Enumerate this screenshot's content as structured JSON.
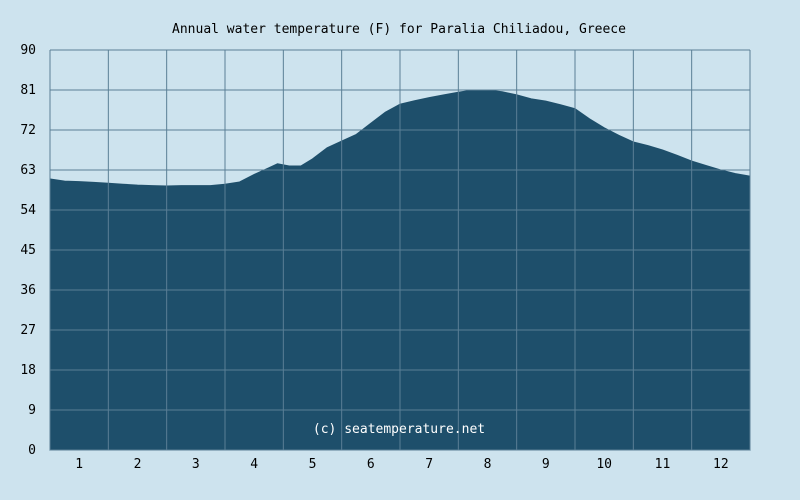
{
  "chart_data": {
    "type": "area",
    "title": "Annual water temperature (F) for Paralia Chiliadou, Greece",
    "xlabel": "",
    "ylabel": "",
    "x_ticks": [
      "1",
      "2",
      "3",
      "4",
      "5",
      "6",
      "7",
      "8",
      "9",
      "10",
      "11",
      "12"
    ],
    "y_ticks": [
      "0",
      "9",
      "18",
      "27",
      "36",
      "45",
      "54",
      "63",
      "72",
      "81",
      "90"
    ],
    "ylim": [
      0,
      90
    ],
    "xlim": [
      0.5,
      12.5
    ],
    "grid": true,
    "x": [
      0.5,
      0.75,
      1.0,
      1.25,
      1.5,
      1.75,
      2.0,
      2.25,
      2.5,
      2.75,
      3.0,
      3.25,
      3.5,
      3.75,
      4.0,
      4.25,
      4.4,
      4.6,
      4.8,
      5.0,
      5.25,
      5.5,
      5.75,
      6.0,
      6.25,
      6.5,
      6.75,
      7.0,
      7.25,
      7.5,
      7.75,
      8.0,
      8.25,
      8.5,
      8.75,
      9.0,
      9.25,
      9.5,
      9.75,
      10.0,
      10.25,
      10.5,
      10.75,
      11.0,
      11.25,
      11.5,
      11.75,
      12.0,
      12.25,
      12.5
    ],
    "values": [
      61.0,
      60.5,
      60.4,
      60.2,
      60.0,
      59.8,
      59.6,
      59.5,
      59.4,
      59.5,
      59.5,
      59.5,
      59.8,
      60.3,
      62.0,
      63.5,
      64.4,
      63.9,
      63.9,
      65.5,
      68.0,
      69.5,
      71.0,
      73.5,
      76.0,
      77.8,
      78.6,
      79.3,
      79.9,
      80.5,
      81.0,
      81.0,
      80.6,
      79.9,
      79.0,
      78.5,
      77.7,
      76.8,
      74.5,
      72.5,
      70.8,
      69.3,
      68.5,
      67.5,
      66.3,
      65.0,
      64.0,
      63.0,
      62.2,
      61.6
    ],
    "area_color": "#1e4f6b",
    "background_color": "#cde3ee",
    "watermark": "(c) seatemperature.net"
  }
}
